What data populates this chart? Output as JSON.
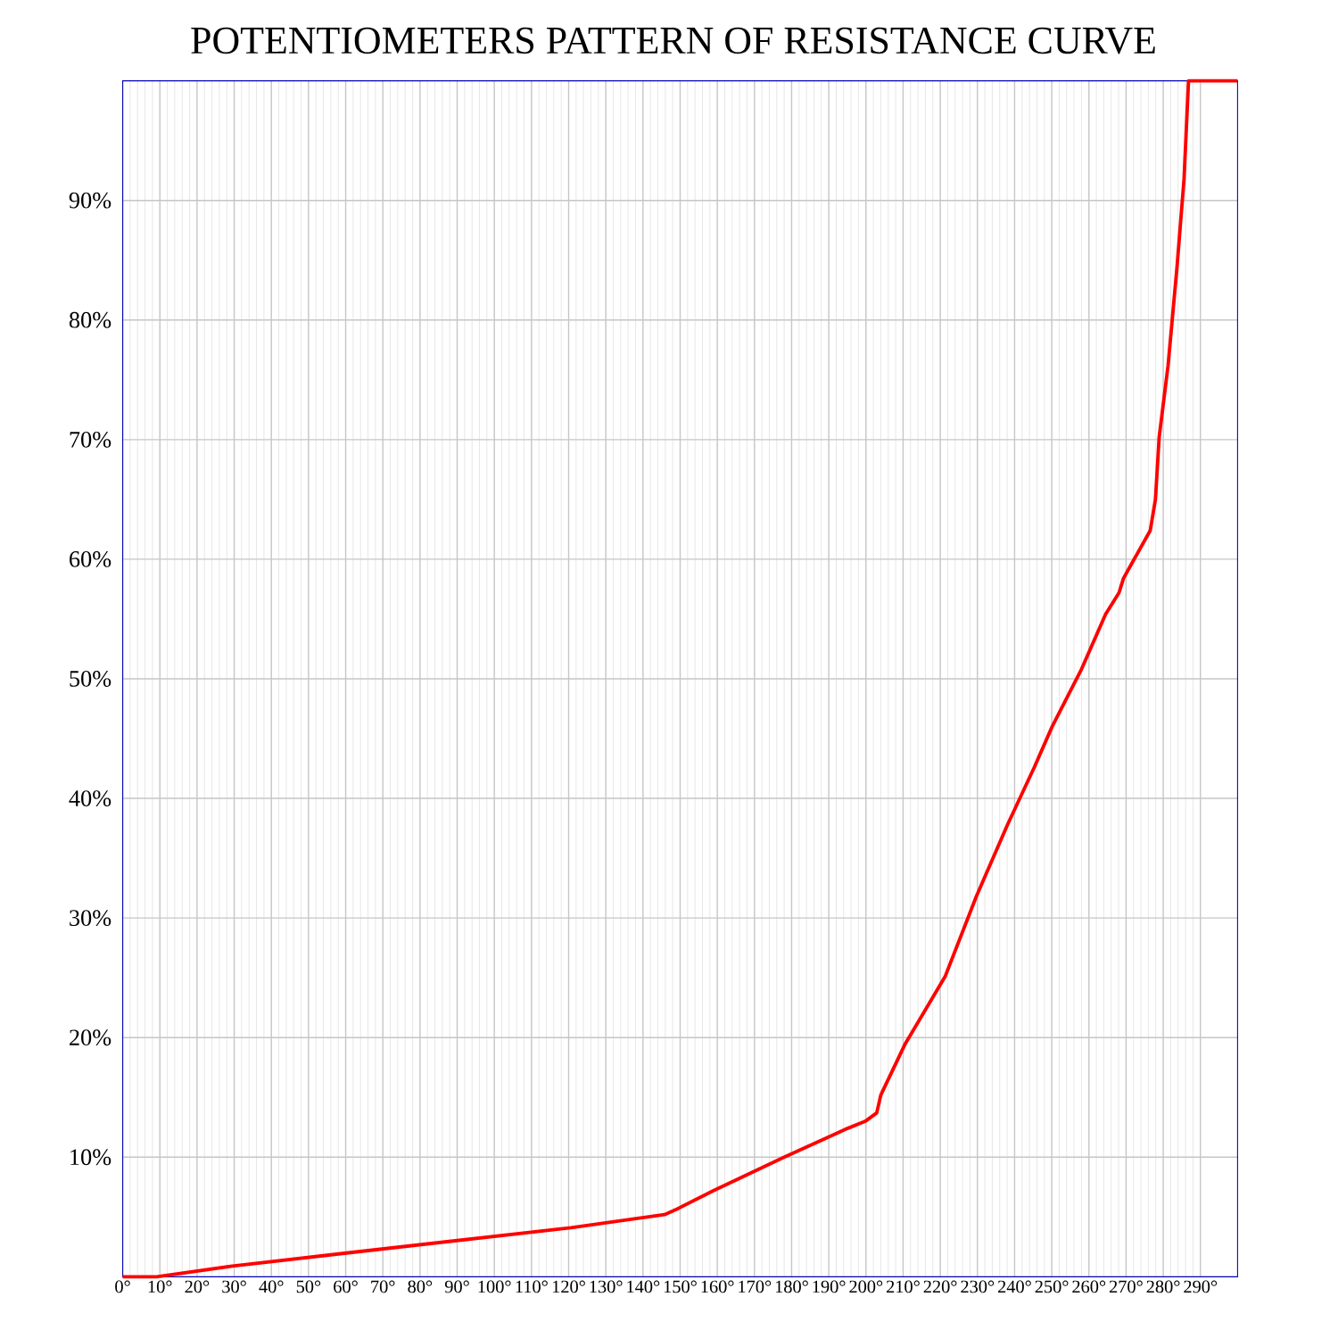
{
  "chart_data": {
    "type": "line",
    "title": "POTENTIOMETERS PATTERN OF RESISTANCE CURVE",
    "x": [
      0,
      9.1,
      29.5,
      60.7,
      120.6,
      145.8,
      149.4,
      159,
      178,
      195,
      199.8,
      202.9,
      204,
      210.6,
      221.3,
      229.7,
      238.1,
      245.3,
      250.1,
      258,
      264.5,
      268.1,
      269.3,
      276.5,
      277.9,
      278.9,
      281.3,
      283.7,
      285.6,
      286.8,
      300
    ],
    "values": [
      0,
      0,
      0.9,
      2.0,
      4.1,
      5.2,
      5.7,
      7.2,
      10.0,
      12.4,
      13.0,
      13.7,
      15.2,
      19.5,
      25.1,
      31.8,
      37.8,
      42.6,
      46.0,
      50.8,
      55.4,
      57.2,
      58.4,
      62.4,
      65.0,
      70.2,
      76.2,
      84.4,
      91.8,
      100,
      100
    ],
    "color": "#ff0000",
    "xlim": [
      0,
      300
    ],
    "xticks": [
      {
        "value": 0,
        "label": "0°"
      },
      {
        "value": 10,
        "label": "10°"
      },
      {
        "value": 20,
        "label": "20°"
      },
      {
        "value": 30,
        "label": "30°"
      },
      {
        "value": 40,
        "label": "40°"
      },
      {
        "value": 50,
        "label": "50°"
      },
      {
        "value": 60,
        "label": "60°"
      },
      {
        "value": 70,
        "label": "70°"
      },
      {
        "value": 80,
        "label": "80°"
      },
      {
        "value": 90,
        "label": "90°"
      },
      {
        "value": 100,
        "label": "100°"
      },
      {
        "value": 110,
        "label": "110°"
      },
      {
        "value": 120,
        "label": "120°"
      },
      {
        "value": 130,
        "label": "130°"
      },
      {
        "value": 140,
        "label": "140°"
      },
      {
        "value": 150,
        "label": "150°"
      },
      {
        "value": 160,
        "label": "160°"
      },
      {
        "value": 170,
        "label": "170°"
      },
      {
        "value": 180,
        "label": "180°"
      },
      {
        "value": 190,
        "label": "190°"
      },
      {
        "value": 200,
        "label": "200°"
      },
      {
        "value": 210,
        "label": "210°"
      },
      {
        "value": 220,
        "label": "220°"
      },
      {
        "value": 230,
        "label": "230°"
      },
      {
        "value": 240,
        "label": "240°"
      },
      {
        "value": 250,
        "label": "250°"
      },
      {
        "value": 260,
        "label": "260°"
      },
      {
        "value": 270,
        "label": "270°"
      },
      {
        "value": 280,
        "label": "280°"
      },
      {
        "value": 290,
        "label": "290°"
      }
    ],
    "ylim": [
      0,
      100
    ],
    "yticks": [
      {
        "value": 10,
        "label": "10%"
      },
      {
        "value": 20,
        "label": "20%"
      },
      {
        "value": 30,
        "label": "30%"
      },
      {
        "value": 40,
        "label": "40%"
      },
      {
        "value": 50,
        "label": "50%"
      },
      {
        "value": 60,
        "label": "60%"
      },
      {
        "value": 70,
        "label": "70%"
      },
      {
        "value": 80,
        "label": "80%"
      },
      {
        "value": 90,
        "label": "90%"
      }
    ],
    "grid": true
  }
}
